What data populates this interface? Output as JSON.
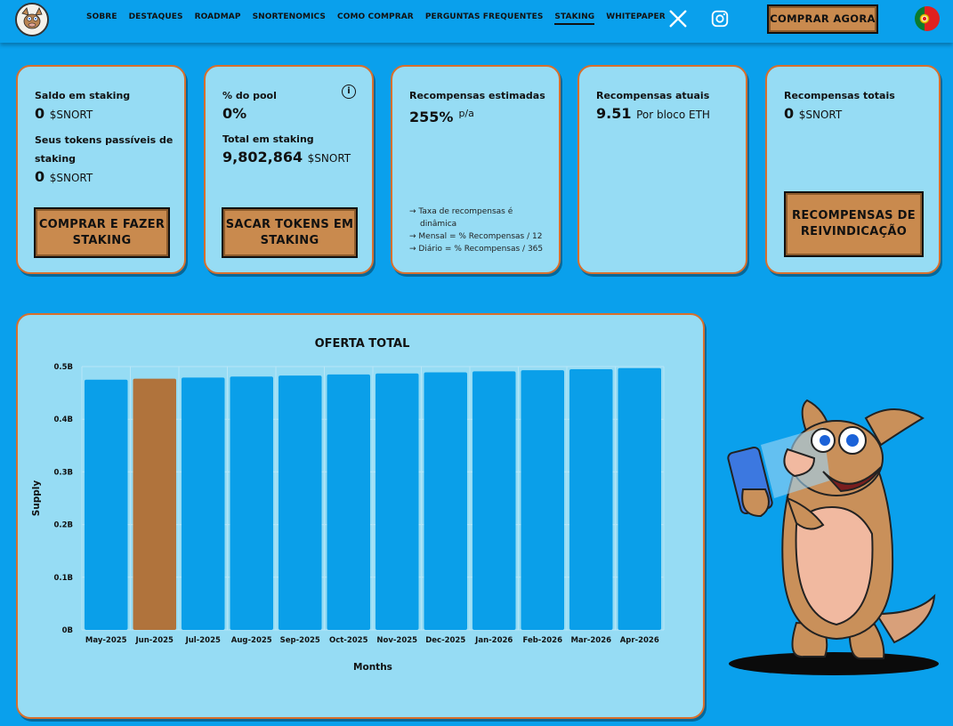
{
  "nav": {
    "items": [
      "SOBRE",
      "DESTAQUES",
      "ROADMAP",
      "SNORTENOMICS",
      "COMO COMPRAR",
      "PERGUNTAS FREQUENTES",
      "STAKING",
      "WHITEPAPER"
    ],
    "active": "STAKING",
    "buy_now": "COMPRAR AGORA"
  },
  "cards": {
    "staking_balance": {
      "label": "Saldo em staking",
      "value": "0",
      "unit": "$SNORT",
      "stakeable_label": "Seus tokens passíveis de staking",
      "stakeable_value": "0",
      "stakeable_unit": "$SNORT",
      "button": "COMPRAR E FAZER STAKING"
    },
    "pool": {
      "label": "% do pool",
      "value": "0%",
      "total_label": "Total em staking",
      "total_value": "9,802,864",
      "total_unit": "$SNORT",
      "button": "SACAR TOKENS EM STAKING"
    },
    "estimated": {
      "label": "Recompensas estimadas",
      "value": "255%",
      "suffix": "p/a",
      "notes": [
        "→ Taxa de recompensas é dinâmica",
        "→ Mensal = % Recompensas / 12",
        "→ Diário = % Recompensas / 365"
      ]
    },
    "current": {
      "label": "Recompensas atuais",
      "value": "9.51",
      "unit": "Por bloco ETH"
    },
    "total": {
      "label": "Recompensas totais",
      "value": "0",
      "unit": "$SNORT",
      "button": "RECOMPENSAS DE REIVINDICAÇÃO"
    }
  },
  "chart_data": {
    "type": "bar",
    "title": "OFERTA TOTAL",
    "xlabel": "Months",
    "ylabel": "Supply",
    "categories": [
      "May-2025",
      "Jun-2025",
      "Jul-2025",
      "Aug-2025",
      "Sep-2025",
      "Oct-2025",
      "Nov-2025",
      "Dec-2025",
      "Jan-2026",
      "Feb-2026",
      "Mar-2026",
      "Apr-2026"
    ],
    "values": [
      0.475,
      0.477,
      0.479,
      0.481,
      0.483,
      0.485,
      0.487,
      0.489,
      0.491,
      0.493,
      0.495,
      0.497
    ],
    "highlight_index": 1,
    "yticks": [
      "0B",
      "0.1B",
      "0.2B",
      "0.3B",
      "0.4B",
      "0.5B"
    ],
    "ylim": [
      0,
      0.5
    ],
    "grid": true,
    "colors": {
      "bar": "#0a9fe9",
      "highlight": "#b0733c"
    }
  }
}
